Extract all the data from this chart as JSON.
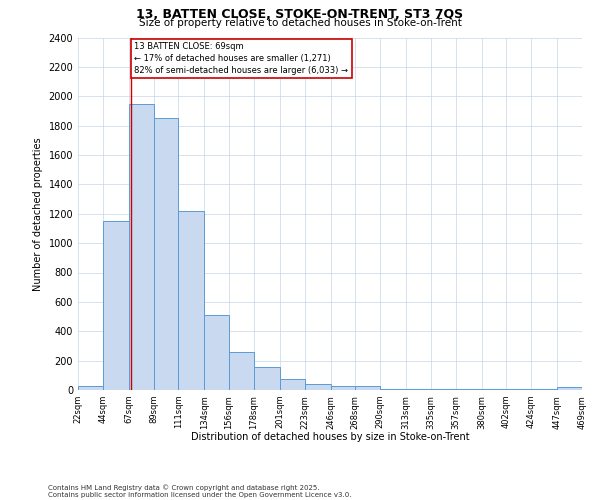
{
  "title1": "13, BATTEN CLOSE, STOKE-ON-TRENT, ST3 7QS",
  "title2": "Size of property relative to detached houses in Stoke-on-Trent",
  "xlabel": "Distribution of detached houses by size in Stoke-on-Trent",
  "ylabel": "Number of detached properties",
  "bar_color": "#c9d9f0",
  "bar_edge_color": "#5b9bd5",
  "grid_color": "#c8d4e8",
  "annotation_box_color": "#cc0000",
  "red_line_color": "#cc0000",
  "property_size": 69,
  "property_label": "13 BATTEN CLOSE: 69sqm",
  "pct_smaller": "17% of detached houses are smaller (1,271)",
  "pct_larger": "82% of semi-detached houses are larger (6,033)",
  "footer1": "Contains HM Land Registry data © Crown copyright and database right 2025.",
  "footer2": "Contains public sector information licensed under the Open Government Licence v3.0.",
  "bin_edges": [
    22,
    44,
    67,
    89,
    111,
    134,
    156,
    178,
    201,
    223,
    246,
    268,
    290,
    313,
    335,
    357,
    380,
    402,
    424,
    447,
    469
  ],
  "counts": [
    25,
    1150,
    1950,
    1850,
    1220,
    510,
    260,
    155,
    75,
    40,
    30,
    25,
    10,
    5,
    5,
    5,
    5,
    5,
    5,
    20
  ],
  "ylim": [
    0,
    2400
  ],
  "yticks": [
    0,
    200,
    400,
    600,
    800,
    1000,
    1200,
    1400,
    1600,
    1800,
    2000,
    2200,
    2400
  ]
}
